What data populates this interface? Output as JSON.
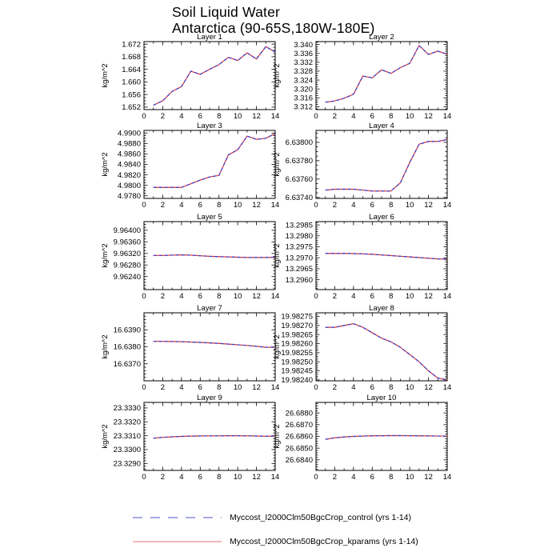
{
  "title": {
    "line1": "Soil Liquid Water",
    "line2": "Antarctica (90-65S,180W-180E)"
  },
  "legend": [
    {
      "label": "Myccost_I2000Clm50BgcCrop_control (yrs 1-14)",
      "color": "#3a3acc",
      "style": "dashed"
    },
    {
      "label": "Myccost_I2000Clm50BgcCrop_kparams (yrs 1-14)",
      "color": "#e03636",
      "style": "solid"
    }
  ],
  "chart_data": [
    {
      "type": "line",
      "title": "Layer 1",
      "ylabel": "kg/m^2",
      "xlim": [
        0,
        14
      ],
      "xticks": [
        0,
        2,
        4,
        6,
        8,
        10,
        12,
        14
      ],
      "xminor": 1,
      "ylim": [
        1.6512,
        1.6728
      ],
      "yticks": [
        1.652,
        1.656,
        1.66,
        1.664,
        1.668,
        1.672
      ],
      "ydec": 3,
      "yminor": 0.001,
      "x": [
        1,
        2,
        3,
        4,
        5,
        6,
        7,
        8,
        9,
        10,
        11,
        12,
        13,
        14
      ],
      "series": [
        {
          "name": "Myccost_I2000Clm50BgcCrop_control (yrs 1-14)",
          "values": [
            1.6526,
            1.654,
            1.657,
            1.6585,
            1.6634,
            1.6624,
            1.664,
            1.6655,
            1.6678,
            1.6668,
            1.6692,
            1.6673,
            1.6712,
            1.6695
          ]
        },
        {
          "name": "Myccost_I2000Clm50BgcCrop_kparams (yrs 1-14)",
          "values": [
            1.6526,
            1.654,
            1.657,
            1.6585,
            1.6634,
            1.6624,
            1.664,
            1.6655,
            1.6678,
            1.6668,
            1.6692,
            1.6673,
            1.6712,
            1.6695
          ]
        }
      ]
    },
    {
      "type": "line",
      "title": "Layer 2",
      "ylabel": "kg/m^2",
      "xlim": [
        0,
        14
      ],
      "xticks": [
        0,
        2,
        4,
        6,
        8,
        10,
        12,
        14
      ],
      "xminor": 1,
      "ylim": [
        3.3107,
        3.3413
      ],
      "yticks": [
        3.312,
        3.316,
        3.32,
        3.324,
        3.328,
        3.332,
        3.336,
        3.34
      ],
      "ydec": 3,
      "yminor": 0.001,
      "x": [
        1,
        2,
        3,
        4,
        5,
        6,
        7,
        8,
        9,
        10,
        11,
        12,
        13,
        14
      ],
      "series": [
        {
          "name": "Myccost_I2000Clm50BgcCrop_control (yrs 1-14)",
          "values": [
            3.314,
            3.3146,
            3.3158,
            3.3176,
            3.3258,
            3.325,
            3.3286,
            3.327,
            3.3296,
            3.3315,
            3.3395,
            3.3355,
            3.337,
            3.3356
          ]
        },
        {
          "name": "Myccost_I2000Clm50BgcCrop_kparams (yrs 1-14)",
          "values": [
            3.314,
            3.3146,
            3.3158,
            3.3176,
            3.3258,
            3.325,
            3.3286,
            3.327,
            3.3296,
            3.3315,
            3.3395,
            3.3355,
            3.337,
            3.3356
          ]
        }
      ]
    },
    {
      "type": "line",
      "title": "Layer 3",
      "ylabel": "kg/m^2",
      "xlim": [
        0,
        14
      ],
      "xticks": [
        0,
        2,
        4,
        6,
        8,
        10,
        12,
        14
      ],
      "xminor": 1,
      "ylim": [
        4.9775,
        4.9905
      ],
      "yticks": [
        4.978,
        4.98,
        4.982,
        4.984,
        4.986,
        4.988,
        4.99
      ],
      "ydec": 4,
      "yminor": 0.0005,
      "x": [
        1,
        2,
        3,
        4,
        5,
        6,
        7,
        8,
        9,
        10,
        11,
        12,
        13,
        14
      ],
      "series": [
        {
          "name": "Myccost_I2000Clm50BgcCrop_control (yrs 1-14)",
          "values": [
            4.9796,
            4.9796,
            4.9796,
            4.9796,
            4.9803,
            4.981,
            4.9816,
            4.9819,
            4.9858,
            4.9868,
            4.9894,
            4.9888,
            4.989,
            4.9899
          ]
        },
        {
          "name": "Myccost_I2000Clm50BgcCrop_kparams (yrs 1-14)",
          "values": [
            4.9796,
            4.9796,
            4.9796,
            4.9796,
            4.9803,
            4.981,
            4.9816,
            4.9819,
            4.9858,
            4.9868,
            4.9894,
            4.9888,
            4.989,
            4.9899
          ]
        }
      ]
    },
    {
      "type": "line",
      "title": "Layer 4",
      "ylabel": "kg/m^2",
      "xlim": [
        0,
        14
      ],
      "xticks": [
        0,
        2,
        4,
        6,
        8,
        10,
        12,
        14
      ],
      "xminor": 1,
      "ylim": [
        6.63739,
        6.63813
      ],
      "yticks": [
        6.6374,
        6.6376,
        6.6378,
        6.638
      ],
      "ydec": 5,
      "yminor": 5e-05,
      "x": [
        1,
        2,
        3,
        4,
        5,
        6,
        7,
        8,
        9,
        10,
        11,
        12,
        13,
        14
      ],
      "series": [
        {
          "name": "Myccost_I2000Clm50BgcCrop_control (yrs 1-14)",
          "values": [
            6.63748,
            6.63749,
            6.63749,
            6.63749,
            6.63748,
            6.63747,
            6.63747,
            6.63747,
            6.63756,
            6.63778,
            6.63798,
            6.63801,
            6.63801,
            6.63803
          ]
        },
        {
          "name": "Myccost_I2000Clm50BgcCrop_kparams (yrs 1-14)",
          "values": [
            6.63748,
            6.63749,
            6.63749,
            6.63749,
            6.63748,
            6.63747,
            6.63747,
            6.63747,
            6.63756,
            6.63778,
            6.63798,
            6.63801,
            6.63801,
            6.63803
          ]
        }
      ]
    },
    {
      "type": "line",
      "title": "Layer 5",
      "ylabel": "kg/m^2",
      "xlim": [
        0,
        14
      ],
      "xticks": [
        0,
        2,
        4,
        6,
        8,
        10,
        12,
        14
      ],
      "xminor": 1,
      "ylim": [
        9.96195,
        9.9643
      ],
      "yticks": [
        9.9624,
        9.9628,
        9.9632,
        9.9636,
        9.964
      ],
      "ydec": 5,
      "yminor": 0.0001,
      "x": [
        1,
        2,
        3,
        4,
        5,
        6,
        7,
        8,
        9,
        10,
        11,
        12,
        13,
        14
      ],
      "series": [
        {
          "name": "Myccost_I2000Clm50BgcCrop_control (yrs 1-14)",
          "values": [
            9.96313,
            9.96313,
            9.96314,
            9.96315,
            9.96314,
            9.96312,
            9.9631,
            9.96309,
            9.96308,
            9.96307,
            9.96306,
            9.96306,
            9.96306,
            9.96307
          ]
        },
        {
          "name": "Myccost_I2000Clm50BgcCrop_kparams (yrs 1-14)",
          "values": [
            9.96313,
            9.96313,
            9.96314,
            9.96315,
            9.96314,
            9.96312,
            9.9631,
            9.96309,
            9.96308,
            9.96307,
            9.96306,
            9.96306,
            9.96306,
            9.96307
          ]
        }
      ]
    },
    {
      "type": "line",
      "title": "Layer 6",
      "ylabel": "kg/m^2",
      "xlim": [
        0,
        14
      ],
      "xticks": [
        0,
        2,
        4,
        6,
        8,
        10,
        12,
        14
      ],
      "xminor": 1,
      "ylim": [
        13.29555,
        13.29865
      ],
      "yticks": [
        13.296,
        13.2965,
        13.297,
        13.2975,
        13.298,
        13.2985
      ],
      "ydec": 4,
      "yminor": 0.0001,
      "x": [
        1,
        2,
        3,
        4,
        5,
        6,
        7,
        8,
        9,
        10,
        11,
        12,
        13,
        14
      ],
      "series": [
        {
          "name": "Myccost_I2000Clm50BgcCrop_control (yrs 1-14)",
          "values": [
            13.2972,
            13.2972,
            13.2972,
            13.29719,
            13.29718,
            13.29716,
            13.29713,
            13.2971,
            13.29707,
            13.29704,
            13.29701,
            13.29698,
            13.29695,
            13.29694
          ]
        },
        {
          "name": "Myccost_I2000Clm50BgcCrop_kparams (yrs 1-14)",
          "values": [
            13.2972,
            13.2972,
            13.2972,
            13.29719,
            13.29718,
            13.29716,
            13.29713,
            13.2971,
            13.29707,
            13.29704,
            13.29701,
            13.29698,
            13.29695,
            13.29694
          ]
        }
      ]
    },
    {
      "type": "line",
      "title": "Layer 7",
      "ylabel": "kg/m^2",
      "xlim": [
        0,
        14
      ],
      "xticks": [
        0,
        2,
        4,
        6,
        8,
        10,
        12,
        14
      ],
      "xminor": 1,
      "ylim": [
        16.636,
        16.64
      ],
      "yticks": [
        16.637,
        16.638,
        16.639
      ],
      "ydec": 4,
      "yminor": 0.0002,
      "x": [
        1,
        2,
        3,
        4,
        5,
        6,
        7,
        8,
        9,
        10,
        11,
        12,
        13,
        14
      ],
      "series": [
        {
          "name": "Myccost_I2000Clm50BgcCrop_control (yrs 1-14)",
          "values": [
            16.63832,
            16.63832,
            16.63831,
            16.6383,
            16.63828,
            16.63826,
            16.63823,
            16.6382,
            16.63816,
            16.63812,
            16.63808,
            16.63803,
            16.63797,
            16.63798
          ]
        },
        {
          "name": "Myccost_I2000Clm50BgcCrop_kparams (yrs 1-14)",
          "values": [
            16.63832,
            16.63832,
            16.63831,
            16.6383,
            16.63828,
            16.63826,
            16.63823,
            16.6382,
            16.63816,
            16.63812,
            16.63808,
            16.63803,
            16.63797,
            16.63798
          ]
        }
      ]
    },
    {
      "type": "line",
      "title": "Layer 8",
      "ylabel": "kg/m^2",
      "xlim": [
        0,
        14
      ],
      "xticks": [
        0,
        2,
        4,
        6,
        8,
        10,
        12,
        14
      ],
      "xminor": 1,
      "ylim": [
        19.982395,
        19.98277
      ],
      "yticks": [
        19.9824,
        19.98245,
        19.9825,
        19.98255,
        19.9826,
        19.98265,
        19.9827,
        19.98275
      ],
      "ydec": 5,
      "yminor": 1e-05,
      "x": [
        1,
        2,
        3,
        4,
        5,
        6,
        7,
        8,
        9,
        10,
        11,
        12,
        13,
        14
      ],
      "series": [
        {
          "name": "Myccost_I2000Clm50BgcCrop_control (yrs 1-14)",
          "values": [
            19.98269,
            19.98269,
            19.9827,
            19.98271,
            19.98269,
            19.98266,
            19.98263,
            19.98261,
            19.98258,
            19.98254,
            19.9825,
            19.98245,
            19.98241,
            19.9824
          ]
        },
        {
          "name": "Myccost_I2000Clm50BgcCrop_kparams (yrs 1-14)",
          "values": [
            19.98269,
            19.98269,
            19.9827,
            19.98271,
            19.98269,
            19.98266,
            19.98263,
            19.98261,
            19.98258,
            19.98254,
            19.9825,
            19.98245,
            19.98241,
            19.9824
          ]
        }
      ]
    },
    {
      "type": "line",
      "title": "Layer 9",
      "ylabel": "kg/m^2",
      "xlim": [
        0,
        14
      ],
      "xticks": [
        0,
        2,
        4,
        6,
        8,
        10,
        12,
        14
      ],
      "xminor": 1,
      "ylim": [
        23.3285,
        23.3334
      ],
      "yticks": [
        23.329,
        23.33,
        23.331,
        23.332,
        23.333
      ],
      "ydec": 4,
      "yminor": 0.0002,
      "x": [
        1,
        2,
        3,
        4,
        5,
        6,
        7,
        8,
        9,
        10,
        11,
        12,
        13,
        14
      ],
      "series": [
        {
          "name": "Myccost_I2000Clm50BgcCrop_control (yrs 1-14)",
          "values": [
            23.33082,
            23.33088,
            23.33092,
            23.33095,
            23.33097,
            23.33098,
            23.33099,
            23.33099,
            23.331,
            23.331,
            23.33099,
            23.33098,
            23.33096,
            23.33097
          ]
        },
        {
          "name": "Myccost_I2000Clm50BgcCrop_kparams (yrs 1-14)",
          "values": [
            23.33082,
            23.33088,
            23.33092,
            23.33095,
            23.33097,
            23.33098,
            23.33099,
            23.33099,
            23.331,
            23.331,
            23.33099,
            23.33098,
            23.33096,
            23.33097
          ]
        }
      ]
    },
    {
      "type": "line",
      "title": "Layer 10",
      "ylabel": "kg/m^2",
      "xlim": [
        0,
        14
      ],
      "xticks": [
        0,
        2,
        4,
        6,
        8,
        10,
        12,
        14
      ],
      "xminor": 1,
      "ylim": [
        26.6831,
        26.6889
      ],
      "yticks": [
        26.684,
        26.685,
        26.686,
        26.687,
        26.688
      ],
      "ydec": 4,
      "yminor": 0.0002,
      "x": [
        1,
        2,
        3,
        4,
        5,
        6,
        7,
        8,
        9,
        10,
        11,
        12,
        13,
        14
      ],
      "series": [
        {
          "name": "Myccost_I2000Clm50BgcCrop_control (yrs 1-14)",
          "values": [
            26.68575,
            26.68588,
            26.68595,
            26.686,
            26.68603,
            26.68605,
            26.68606,
            26.68607,
            26.68607,
            26.68606,
            26.68605,
            26.68604,
            26.68603,
            26.68603
          ]
        },
        {
          "name": "Myccost_I2000Clm50BgcCrop_kparams (yrs 1-14)",
          "values": [
            26.68575,
            26.68588,
            26.68595,
            26.686,
            26.68603,
            26.68605,
            26.68606,
            26.68607,
            26.68607,
            26.68606,
            26.68605,
            26.68604,
            26.68603,
            26.68603
          ]
        }
      ]
    }
  ]
}
